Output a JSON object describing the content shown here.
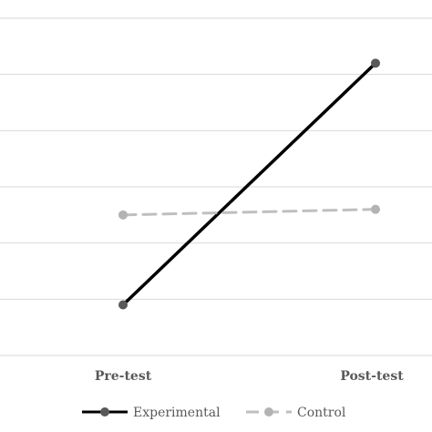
{
  "chart_data": {
    "type": "line",
    "categories": [
      "Pre-test",
      "Post-test"
    ],
    "series": [
      {
        "name": "Experimental",
        "values": [
          0.9,
          5.2
        ],
        "color": "#000000",
        "marker_color": "#595959",
        "dashed": false
      },
      {
        "name": "Control",
        "values": [
          2.5,
          2.6
        ],
        "color": "#bfbfbf",
        "marker_color": "#b3b3b3",
        "dashed": true
      }
    ],
    "title": "",
    "xlabel": "",
    "ylabel": "",
    "ylim": [
      0,
      6
    ],
    "grid": true,
    "legend_position": "bottom"
  }
}
